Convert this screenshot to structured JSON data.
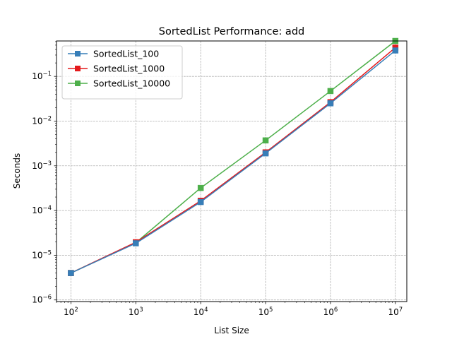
{
  "chart_data": {
    "type": "line",
    "title": "SortedList Performance: add",
    "xlabel": "List Size",
    "ylabel": "Seconds",
    "xscale": "log",
    "yscale": "log",
    "xlim": [
      60,
      15000000
    ],
    "ylim": [
      9.2e-07,
      0.62
    ],
    "grid": true,
    "legend_position": "top-left",
    "x_ticks": [
      {
        "value": 100,
        "base": "10",
        "exp": "2"
      },
      {
        "value": 1000,
        "base": "10",
        "exp": "3"
      },
      {
        "value": 10000,
        "base": "10",
        "exp": "4"
      },
      {
        "value": 100000,
        "base": "10",
        "exp": "5"
      },
      {
        "value": 1000000,
        "base": "10",
        "exp": "6"
      },
      {
        "value": 10000000,
        "base": "10",
        "exp": "7"
      }
    ],
    "y_ticks": [
      {
        "value": 1e-06,
        "base": "10",
        "exp": "−6"
      },
      {
        "value": 1e-05,
        "base": "10",
        "exp": "−5"
      },
      {
        "value": 0.0001,
        "base": "10",
        "exp": "−4"
      },
      {
        "value": 0.001,
        "base": "10",
        "exp": "−3"
      },
      {
        "value": 0.01,
        "base": "10",
        "exp": "−2"
      },
      {
        "value": 0.1,
        "base": "10",
        "exp": "−1"
      }
    ],
    "x": [
      100,
      1000,
      10000,
      100000,
      1000000,
      10000000
    ],
    "series": [
      {
        "name": "SortedList_100",
        "color": "#377eb8",
        "values": [
          4e-06,
          1.85e-05,
          0.000155,
          0.0019,
          0.025,
          0.38
        ]
      },
      {
        "name": "SortedList_1000",
        "color": "#e41a1c",
        "values": [
          4e-06,
          1.95e-05,
          0.000165,
          0.002,
          0.0265,
          0.44
        ]
      },
      {
        "name": "SortedList_10000",
        "color": "#4daf4a",
        "values": [
          4e-06,
          1.9e-05,
          0.00032,
          0.0037,
          0.047,
          0.62
        ]
      }
    ]
  }
}
